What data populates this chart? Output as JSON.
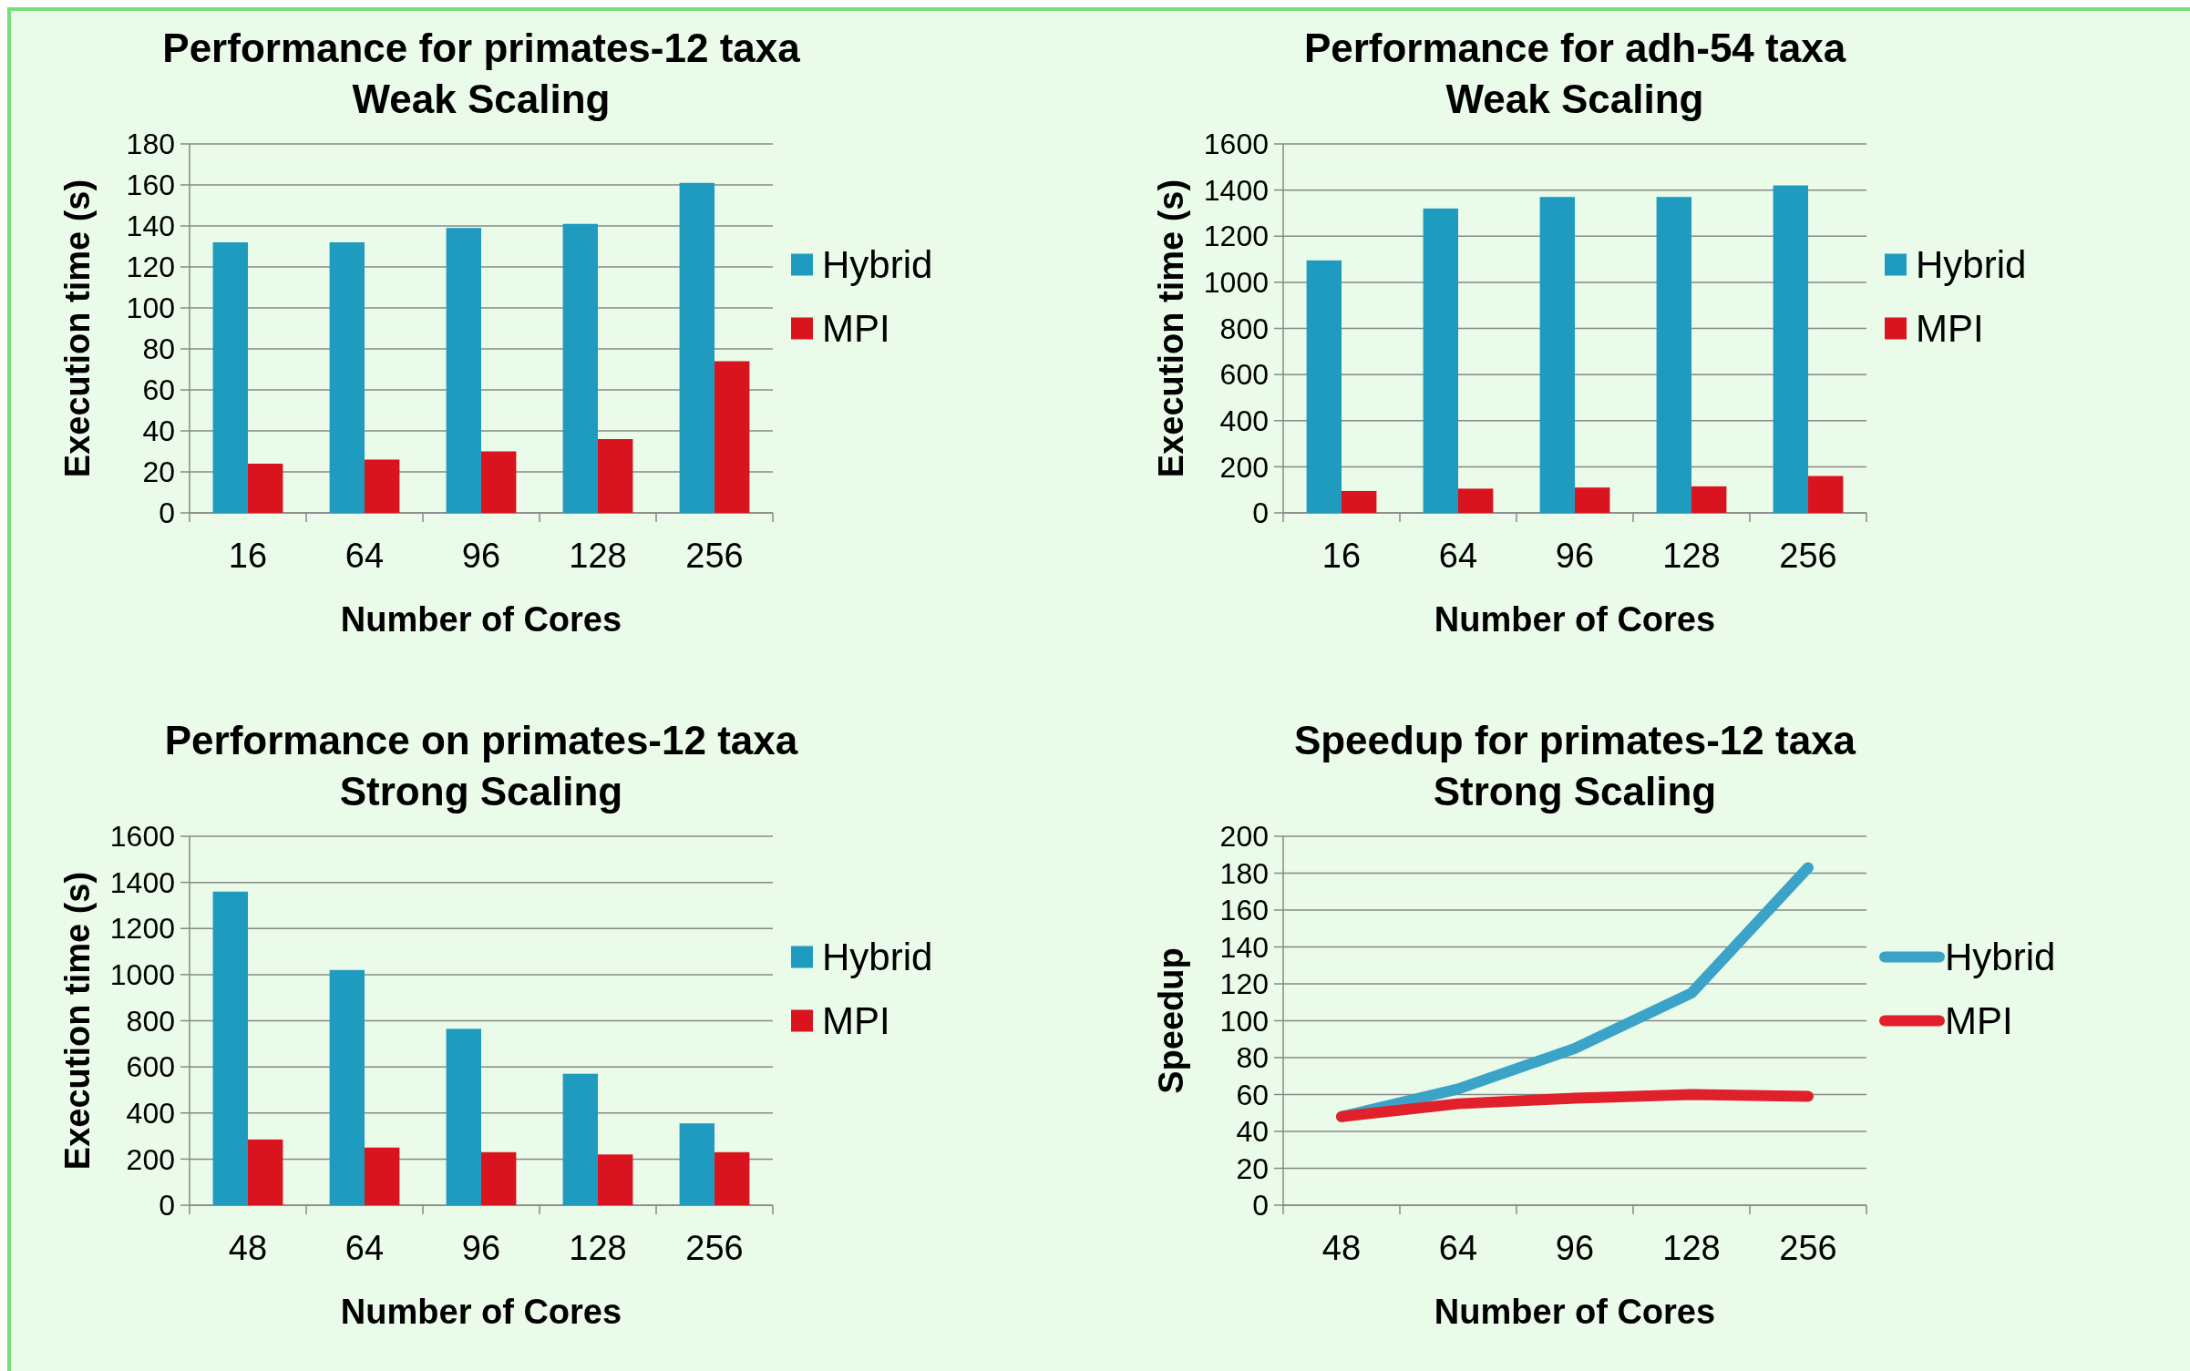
{
  "chart_data": [
    {
      "type": "bar",
      "title": "Performance for primates-12 taxa\nWeak Scaling",
      "xlabel": "Number of Cores",
      "ylabel": "Execution time (s)",
      "categories": [
        "16",
        "64",
        "96",
        "128",
        "256"
      ],
      "series": [
        {
          "name": "Hybrid",
          "color": "#1f9bbf",
          "values": [
            132,
            132,
            139,
            141,
            161
          ]
        },
        {
          "name": "MPI",
          "color": "#d9141e",
          "values": [
            24,
            26,
            30,
            36,
            74
          ]
        }
      ],
      "ylim": [
        0,
        180
      ],
      "yticks": [
        0,
        20,
        40,
        60,
        80,
        100,
        120,
        140,
        160,
        180
      ],
      "grid": "y",
      "legend": "right"
    },
    {
      "type": "bar",
      "title": "Performance for adh-54 taxa\nWeak Scaling",
      "xlabel": "Number of Cores",
      "ylabel": "Execution time (s)",
      "categories": [
        "16",
        "64",
        "96",
        "128",
        "256"
      ],
      "series": [
        {
          "name": "Hybrid",
          "color": "#1f9bbf",
          "values": [
            1095,
            1320,
            1370,
            1370,
            1420
          ]
        },
        {
          "name": "MPI",
          "color": "#d9141e",
          "values": [
            95,
            105,
            110,
            115,
            160
          ]
        }
      ],
      "ylim": [
        0,
        1600
      ],
      "yticks": [
        0,
        200,
        400,
        600,
        800,
        1000,
        1200,
        1400,
        1600
      ],
      "grid": "y",
      "legend": "right"
    },
    {
      "type": "bar",
      "title": "Performance on primates-12 taxa\nStrong Scaling",
      "xlabel": "Number of Cores",
      "ylabel": "Execution time (s)",
      "categories": [
        "48",
        "64",
        "96",
        "128",
        "256"
      ],
      "series": [
        {
          "name": "Hybrid",
          "color": "#1f9bbf",
          "values": [
            1360,
            1020,
            765,
            570,
            355
          ]
        },
        {
          "name": "MPI",
          "color": "#d9141e",
          "values": [
            285,
            250,
            230,
            220,
            230
          ]
        }
      ],
      "ylim": [
        0,
        1600
      ],
      "yticks": [
        0,
        200,
        400,
        600,
        800,
        1000,
        1200,
        1400,
        1600
      ],
      "grid": "y",
      "legend": "right"
    },
    {
      "type": "line",
      "title": "Speedup for primates-12 taxa\nStrong Scaling",
      "xlabel": "Number of Cores",
      "ylabel": "Speedup",
      "categories": [
        "48",
        "64",
        "96",
        "128",
        "256"
      ],
      "series": [
        {
          "name": "Hybrid",
          "color": "#3aa3c7",
          "values": [
            48,
            63,
            85,
            115,
            183
          ]
        },
        {
          "name": "MPI",
          "color": "#e0202a",
          "values": [
            48,
            55,
            58,
            60,
            59
          ]
        }
      ],
      "ylim": [
        0,
        200
      ],
      "yticks": [
        0,
        20,
        40,
        60,
        80,
        100,
        120,
        140,
        160,
        180,
        200
      ],
      "grid": "y",
      "legend": "right",
      "marker": "none"
    }
  ]
}
